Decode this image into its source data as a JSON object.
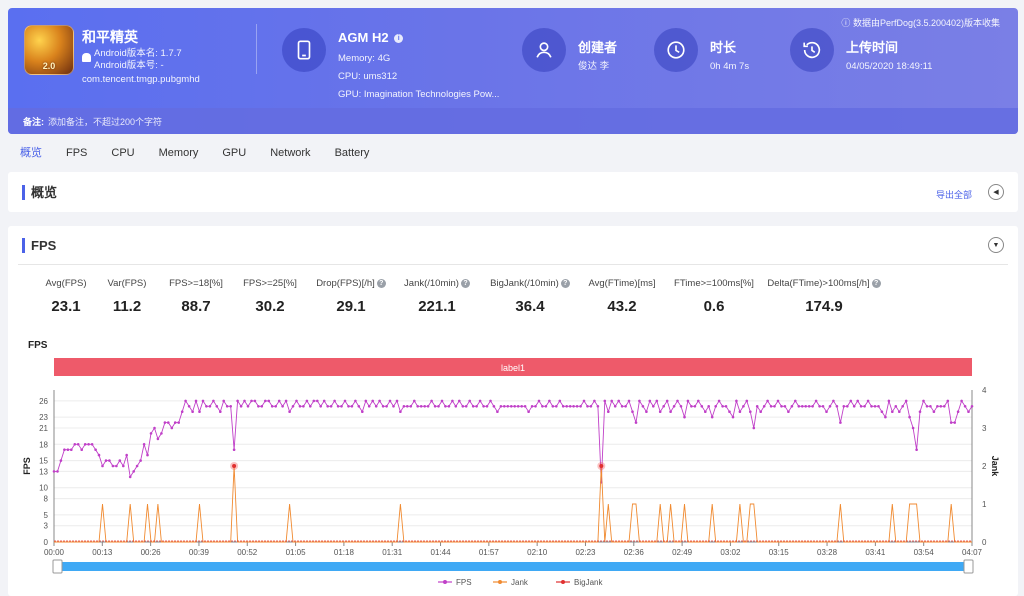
{
  "header": {
    "app_name": "和平精英",
    "app_icon_text": "2.0",
    "version_name_label": "Android版本名: 1.7.7",
    "version_code_label": "Android版本号: -",
    "package": "com.tencent.tmgp.pubgmhd",
    "device_name": "AGM H2",
    "memory": "Memory: 4G",
    "cpu": "CPU: ums312",
    "gpu": "GPU: Imagination Technologies Pow...",
    "creator_title": "创建者",
    "creator_value": "俊达 李",
    "duration_title": "时长",
    "duration_value": "0h 4m 7s",
    "upload_title": "上传时间",
    "upload_value": "04/05/2020 18:49:11",
    "collected_by": "数据由PerfDog(3.5.200402)版本收集",
    "note_label": "备注:",
    "note_placeholder": "添加备注，不超过200个字符"
  },
  "tabs": [
    {
      "label": "概览",
      "active": true
    },
    {
      "label": "FPS"
    },
    {
      "label": "CPU"
    },
    {
      "label": "Memory"
    },
    {
      "label": "GPU"
    },
    {
      "label": "Network"
    },
    {
      "label": "Battery"
    }
  ],
  "overview": {
    "title": "概览",
    "export_label": "导出全部"
  },
  "fps_section": {
    "title": "FPS",
    "metrics": [
      {
        "label": "Avg(FPS)",
        "value": "23.1",
        "help": false
      },
      {
        "label": "Var(FPS)",
        "value": "11.2",
        "help": false
      },
      {
        "label": "FPS>=18[%]",
        "value": "88.7",
        "help": false
      },
      {
        "label": "FPS>=25[%]",
        "value": "30.2",
        "help": false
      },
      {
        "label": "Drop(FPS)[/h]",
        "value": "29.1",
        "help": true
      },
      {
        "label": "Jank(/10min)",
        "value": "221.1",
        "help": true
      },
      {
        "label": "BigJank(/10min)",
        "value": "36.4",
        "help": true
      },
      {
        "label": "Avg(FTime)[ms]",
        "value": "43.2",
        "help": false
      },
      {
        "label": "FTime>=100ms[%]",
        "value": "0.6",
        "help": false
      },
      {
        "label": "Delta(FTime)>100ms[/h]",
        "value": "174.9",
        "help": true
      }
    ]
  },
  "chart_data": {
    "type": "line",
    "title": "FPS",
    "label_band": "label1",
    "ylabel_left": "FPS",
    "ylabel_right": "Jank",
    "y_left_ticks": [
      0,
      3,
      5,
      8,
      10,
      13,
      15,
      18,
      21,
      23,
      26
    ],
    "y_left_range": [
      0,
      28
    ],
    "y_right_ticks": [
      0,
      1,
      2,
      3,
      4
    ],
    "y_right_range": [
      0,
      4
    ],
    "x_ticks": [
      "00:00",
      "00:13",
      "00:26",
      "00:39",
      "00:52",
      "01:05",
      "01:18",
      "01:31",
      "01:44",
      "01:57",
      "02:10",
      "02:23",
      "02:36",
      "02:49",
      "03:02",
      "03:15",
      "03:28",
      "03:41",
      "03:54",
      "04:07"
    ],
    "x_range_seconds": [
      0,
      247
    ],
    "legend": [
      "FPS",
      "Jank",
      "BigJank"
    ],
    "colors": {
      "FPS": "#c040c8",
      "Jank": "#f08a30",
      "BigJank": "#e03030",
      "label_band": "#ee5a6a",
      "slider": "#3fa9f5"
    },
    "fps_series": [
      13,
      13,
      15,
      17,
      17,
      17,
      18,
      18,
      17,
      18,
      18,
      18,
      17,
      16,
      14,
      15,
      15,
      14,
      14,
      15,
      14,
      16,
      12,
      13,
      14,
      15,
      18,
      16,
      20,
      21,
      19,
      20,
      22,
      22,
      21,
      22,
      22,
      24,
      26,
      25,
      24,
      26,
      24,
      26,
      25,
      25,
      26,
      25,
      24,
      26,
      25,
      25,
      17,
      26,
      25,
      26,
      25,
      26,
      26,
      25,
      25,
      26,
      26,
      25,
      25,
      26,
      25,
      26,
      24,
      25,
      26,
      25,
      25,
      26,
      25,
      26,
      26,
      25,
      26,
      25,
      25,
      26,
      25,
      25,
      26,
      25,
      25,
      26,
      25,
      24,
      26,
      25,
      26,
      25,
      26,
      25,
      25,
      26,
      25,
      26,
      24,
      25,
      25,
      25,
      26,
      25,
      25,
      25,
      25,
      26,
      25,
      25,
      26,
      25,
      25,
      26,
      25,
      26,
      25,
      25,
      26,
      25,
      25,
      26,
      25,
      25,
      26,
      25,
      24,
      25,
      25,
      25,
      25,
      25,
      25,
      25,
      25,
      24,
      25,
      25,
      26,
      25,
      25,
      26,
      25,
      25,
      26,
      25,
      25,
      25,
      25,
      25,
      25,
      26,
      25,
      25,
      26,
      25,
      11,
      26,
      24,
      26,
      25,
      26,
      25,
      25,
      26,
      24,
      22,
      26,
      25,
      24,
      26,
      25,
      26,
      24,
      25,
      26,
      24,
      25,
      26,
      25,
      23,
      26,
      25,
      25,
      26,
      25,
      24,
      25,
      23,
      25,
      26,
      25,
      25,
      24,
      23,
      26,
      24,
      25,
      26,
      24,
      21,
      25,
      24,
      25,
      26,
      25,
      25,
      26,
      25,
      25,
      24,
      25,
      26,
      25,
      25,
      25,
      25,
      25,
      26,
      25,
      25,
      24,
      25,
      26,
      25,
      22,
      25,
      25,
      26,
      25,
      26,
      25,
      25,
      26,
      25,
      25,
      25,
      24,
      23,
      26,
      24,
      25,
      24,
      25,
      26,
      23,
      21,
      17,
      24,
      26,
      25,
      25,
      24,
      25,
      25,
      25,
      26,
      22,
      22,
      24,
      26,
      25,
      24,
      25
    ]
  }
}
